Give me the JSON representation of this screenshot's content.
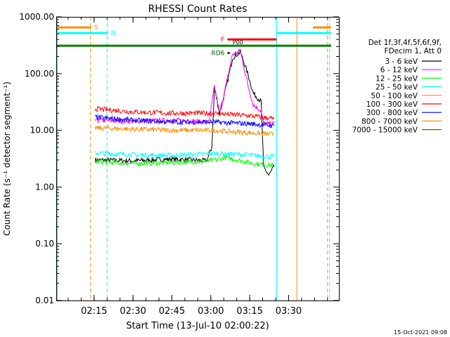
{
  "chart_data": {
    "type": "line",
    "title": "RHESSI Count Rates",
    "xlabel": "Start Time (13-Jul-10 02:00:22)",
    "ylabel": "Count Rate (s⁻¹ detector segment⁻¹)",
    "yscale": "log",
    "ylim": [
      0.01,
      1000
    ],
    "xlim_minutes": [
      0,
      109
    ],
    "x_ticks": [
      {
        "label": "02:15",
        "min": 14.6
      },
      {
        "label": "02:30",
        "min": 29.6
      },
      {
        "label": "02:45",
        "min": 44.6
      },
      {
        "label": "03:00",
        "min": 59.6
      },
      {
        "label": "03:15",
        "min": 74.6
      },
      {
        "label": "03:30",
        "min": 89.6
      }
    ],
    "y_ticks": [
      "0.01",
      "0.10",
      "1.00",
      "10.00",
      "100.00",
      "1000.00"
    ],
    "y_tick_values": [
      0.01,
      0.1,
      1,
      10,
      100,
      1000
    ],
    "legend_header": [
      "Det 1f,3f,4f,5f,6f,9f,",
      "FDecim 1, Att 0"
    ],
    "legend_placement": "right",
    "series": [
      {
        "name": "3 - 6 keV",
        "color": "#000000",
        "points": [
          [
            15,
            3.0
          ],
          [
            30,
            2.9
          ],
          [
            45,
            3.1
          ],
          [
            58,
            2.9
          ],
          [
            60,
            5.0
          ],
          [
            61,
            55.0
          ],
          [
            63,
            20.0
          ],
          [
            66,
            70.0
          ],
          [
            68,
            190.0
          ],
          [
            71,
            240.0
          ],
          [
            74,
            95.0
          ],
          [
            76,
            45.0
          ],
          [
            79,
            32.0
          ],
          [
            80,
            2.2
          ],
          [
            82,
            1.6
          ],
          [
            84,
            2.3
          ]
        ]
      },
      {
        "name": "6 - 12 keV",
        "color": "#ff00ff",
        "points": [
          [
            15,
            15.0
          ],
          [
            30,
            14.5
          ],
          [
            45,
            15.0
          ],
          [
            59,
            14.0
          ],
          [
            61,
            60.0
          ],
          [
            63,
            20.0
          ],
          [
            66,
            80.0
          ],
          [
            68,
            220.0
          ],
          [
            71,
            250.0
          ],
          [
            74,
            60.0
          ],
          [
            76,
            28.0
          ],
          [
            79,
            22.0
          ],
          [
            80,
            13.0
          ],
          [
            84,
            13.0
          ]
        ]
      },
      {
        "name": "12 - 25 keV",
        "color": "#00ff00",
        "points": [
          [
            15,
            2.8
          ],
          [
            30,
            2.6
          ],
          [
            45,
            2.7
          ],
          [
            60,
            2.9
          ],
          [
            65,
            3.3
          ],
          [
            70,
            3.0
          ],
          [
            76,
            2.6
          ],
          [
            80,
            2.5
          ],
          [
            84,
            2.4
          ]
        ]
      },
      {
        "name": "25 - 50 keV",
        "color": "#00ffff",
        "points": [
          [
            15,
            4.0
          ],
          [
            30,
            3.7
          ],
          [
            45,
            3.6
          ],
          [
            60,
            3.9
          ],
          [
            70,
            3.8
          ],
          [
            80,
            3.5
          ],
          [
            84,
            3.4
          ]
        ]
      },
      {
        "name": "50 - 100 keV",
        "color": "#ff8c00",
        "points": [
          [
            15,
            11.0
          ],
          [
            30,
            10.5
          ],
          [
            45,
            10.0
          ],
          [
            60,
            10.0
          ],
          [
            75,
            9.0
          ],
          [
            84,
            8.5
          ]
        ]
      },
      {
        "name": "100 - 300 keV",
        "color": "#ff0000",
        "points": [
          [
            15,
            24.0
          ],
          [
            30,
            21.0
          ],
          [
            45,
            20.0
          ],
          [
            60,
            20.0
          ],
          [
            75,
            18.0
          ],
          [
            84,
            16.0
          ]
        ]
      },
      {
        "name": "300 - 800 keV",
        "color": "#0000ff",
        "points": [
          [
            15,
            17.0
          ],
          [
            30,
            15.0
          ],
          [
            45,
            14.0
          ],
          [
            60,
            14.0
          ],
          [
            75,
            13.0
          ],
          [
            84,
            12.0
          ]
        ]
      },
      {
        "name": "800 - 7000 keV",
        "color": "#ff8c00",
        "points": []
      },
      {
        "name": "7000 - 15000 keV",
        "color": "#8b4513",
        "points": []
      }
    ],
    "flag_bars": [
      {
        "label": "S",
        "color": "#ff8c00",
        "label_side": "right",
        "from_min": 0,
        "to_min": 13.5,
        "y": 650
      },
      {
        "label": "S",
        "color": "#ff8c00",
        "label_side": "none",
        "from_min": 99,
        "to_min": 106,
        "y": 650
      },
      {
        "label": "N",
        "color": "#00ffff",
        "label_side": "right",
        "from_min": 0,
        "to_min": 20,
        "y": 520
      },
      {
        "label": "N",
        "color": "#00ffff",
        "label_side": "none",
        "from_min": 85,
        "to_min": 106,
        "y": 520
      },
      {
        "label": "F",
        "color": "#ff0000",
        "label_side": "left",
        "from_min": 66,
        "to_min": 85,
        "y": 400
      },
      {
        "label": "RD6",
        "color": "#006400",
        "label_side": "left",
        "from_min": 66,
        "to_min": 67,
        "y": 230
      },
      {
        "label": "",
        "color": "#008000",
        "label_side": "none",
        "from_min": 0,
        "to_min": 106,
        "y": 310
      }
    ],
    "annotations": [
      {
        "text": "P00",
        "min": 68,
        "y": 330,
        "color": "#000000"
      }
    ],
    "vertical_lines": [
      {
        "min": 13.2,
        "color": "#ff8c00",
        "style": "dashed"
      },
      {
        "min": 19.6,
        "color": "#00ffff",
        "style": "dashed"
      },
      {
        "min": 0.4,
        "color": "#00ffff",
        "style": "solid"
      },
      {
        "min": 85.0,
        "color": "#00ffff",
        "style": "solid"
      },
      {
        "min": 92.8,
        "color": "#ff8c00",
        "style": "solid"
      },
      {
        "min": 104.6,
        "color": "#ff8c00",
        "style": "dashed"
      },
      {
        "min": 105.4,
        "color": "#00ffff",
        "style": "dashed"
      }
    ],
    "grid": false
  },
  "timestamp": "15-Oct-2021 09:08"
}
